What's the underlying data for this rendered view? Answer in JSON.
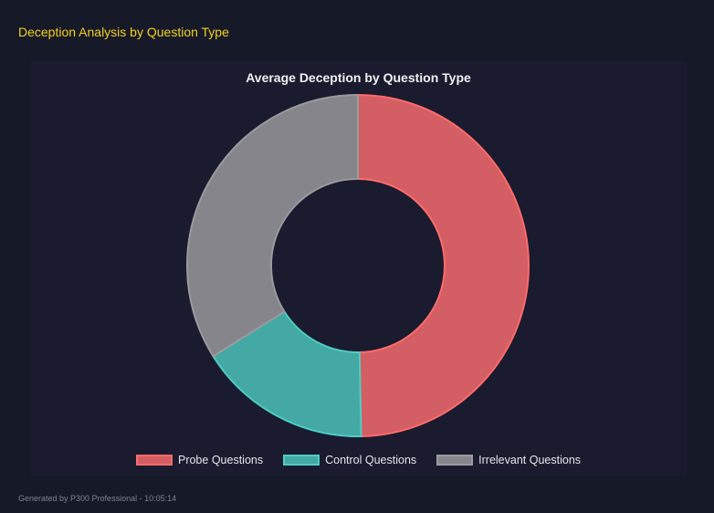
{
  "header": {
    "title": "Deception Analysis by Question Type"
  },
  "footer": {
    "text": "Generated by P300 Professional - 10:05:14"
  },
  "chart_data": {
    "type": "pie",
    "variant": "doughnut",
    "title": "Average Deception by Question Type",
    "categories": [
      "Probe Questions",
      "Control Questions",
      "Irrelevant Questions"
    ],
    "values": [
      49.7,
      16.4,
      33.9
    ],
    "colors": [
      {
        "fill": "#d35e63",
        "border": "#ff6b6b"
      },
      {
        "fill": "#44a8a4",
        "border": "#4ecdc4"
      },
      {
        "fill": "#86858b",
        "border": "#9a9a9e"
      }
    ],
    "legend": "bottom"
  }
}
